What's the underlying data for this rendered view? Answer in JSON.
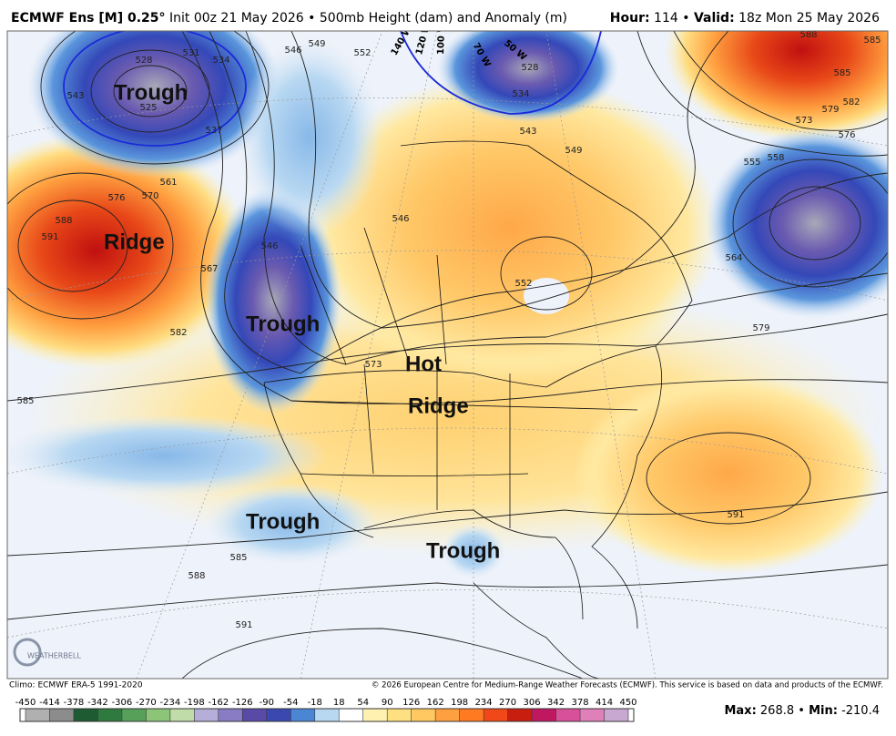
{
  "header": {
    "model": "ECMWF Ens [M] 0.25°",
    "run": "Init 00z 21 May 2026 • 500mb Height (dam) and Anomaly (m)",
    "hour_label": "Hour:",
    "hour": "114",
    "separator": "•",
    "valid_label": "Valid:",
    "valid": "18z Mon 25 May 2026"
  },
  "map": {
    "features": [
      "Trough",
      "Ridge",
      "Trough",
      "Hot",
      "Ridge",
      "Trough",
      "Trough"
    ],
    "contour_labels": [
      531,
      528,
      534,
      525,
      537,
      543,
      546,
      549,
      552,
      561,
      570,
      576,
      588,
      591,
      567,
      582,
      585,
      573,
      546,
      546,
      555,
      558,
      564,
      579,
      591,
      585,
      588,
      591,
      588,
      585,
      585,
      582,
      579,
      573,
      576,
      528,
      534,
      543,
      552,
      549
    ],
    "longitudes": [
      "140 W",
      "120 W",
      "100 W",
      "70 W",
      "50 W"
    ],
    "logo": "WEATHERBELL"
  },
  "footer": {
    "climo": "Climo: ECMWF ERA-5 1991-2020",
    "copyright": "© 2026 European Centre for Medium-Range Weather Forecasts (ECMWF). This service is based on data and products of the ECMWF."
  },
  "colorbar": {
    "ticks": [
      -450,
      -414,
      -378,
      -342,
      -306,
      -270,
      -234,
      -198,
      -162,
      -126,
      -90,
      -54,
      -18,
      18,
      54,
      90,
      126,
      162,
      198,
      234,
      270,
      306,
      342,
      378,
      414,
      450
    ],
    "colors": [
      "#b0b0b0",
      "#8c8c8c",
      "#1e5a32",
      "#2f7a3e",
      "#56a05a",
      "#8cc478",
      "#c0dca8",
      "#b4aed8",
      "#8a7cc4",
      "#5a4aa8",
      "#3a48b0",
      "#4a86d4",
      "#b8d8f2",
      "#ffffff",
      "#fff2b0",
      "#ffe080",
      "#ffc860",
      "#ffa040",
      "#ff7a20",
      "#f04818",
      "#c81e10",
      "#c01860",
      "#d8509a",
      "#e080b8",
      "#c8a8d0"
    ]
  },
  "stats": {
    "max_label": "Max:",
    "max": 268.8,
    "separator": "•",
    "min_label": "Min:",
    "min": -210.4
  }
}
